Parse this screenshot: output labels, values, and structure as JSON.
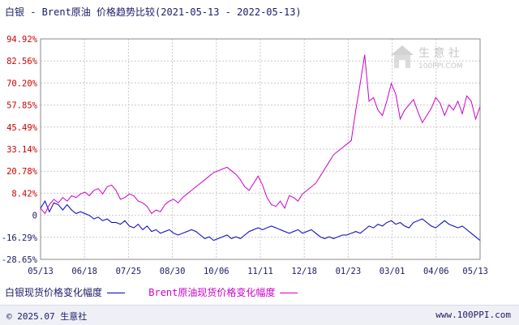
{
  "header": {
    "title": "白银 - Brent原油 价格趋势比较(2021-05-13 - 2022-05-13)"
  },
  "footer": {
    "copyright": "© 2025.07 生意社",
    "site": "www.100PPI.com"
  },
  "watermark": {
    "brand": "生 意 社",
    "url": "100PPI.COM"
  },
  "colors": {
    "silver_series": "#0000bb",
    "brent_series": "#cc00cc",
    "y_positive_label": "#cc0000",
    "y_negative_label": "#1a1a66",
    "grid": "#c8c8c8"
  },
  "chart_data": {
    "type": "line",
    "title": "白银 - Brent原油 价格趋势比较(2021-05-13 - 2022-05-13)",
    "xlabel": "",
    "ylabel": "",
    "x_tick_labels": [
      "05/13",
      "06/18",
      "07/25",
      "08/30",
      "10/06",
      "11/11",
      "12/18",
      "01/23",
      "03/01",
      "04/06",
      "05/13"
    ],
    "y_tick_labels": [
      "94.92%",
      "82.56%",
      "70.20%",
      "57.85%",
      "45.49%",
      "33.14%",
      "20.78%",
      "8.42%",
      "0",
      "-16.29%",
      "-28.65%"
    ],
    "ylim": [
      -28.65,
      94.92
    ],
    "grid": true,
    "legend_position": "bottom",
    "series": [
      {
        "name": "白银现货价格变化幅度",
        "color": "#0000bb",
        "values": [
          0,
          4,
          -2,
          3,
          2,
          -1,
          2,
          -1,
          -3,
          -2,
          -3,
          -4,
          -6,
          -5,
          -7,
          -6,
          -8,
          -8,
          -9,
          -7,
          -10,
          -11,
          -9,
          -12,
          -10,
          -13,
          -12,
          -14,
          -13,
          -12,
          -14,
          -15,
          -14,
          -13,
          -12,
          -13,
          -15,
          -17,
          -16,
          -18,
          -17,
          -16,
          -15,
          -17,
          -16,
          -17,
          -15,
          -13,
          -12,
          -11,
          -12,
          -11,
          -10,
          -11,
          -12,
          -13,
          -14,
          -13,
          -12,
          -14,
          -13,
          -12,
          -14,
          -16,
          -17,
          -16,
          -17,
          -16,
          -15,
          -15,
          -14,
          -13,
          -14,
          -12,
          -10,
          -11,
          -9,
          -10,
          -8,
          -7,
          -9,
          -8,
          -10,
          -11,
          -8,
          -7,
          -6,
          -8,
          -10,
          -11,
          -9,
          -7,
          -9,
          -10,
          -11,
          -10,
          -12,
          -14,
          -16,
          -18
        ]
      },
      {
        "name": "Brent原油现货价格变化幅度",
        "color": "#cc00cc",
        "values": [
          0,
          -3,
          2,
          5,
          3,
          6,
          4,
          7,
          6,
          8,
          9,
          7,
          10,
          11,
          8,
          12,
          13,
          10,
          5,
          6,
          8,
          7,
          4,
          3,
          1,
          -3,
          -1,
          -2,
          2,
          4,
          5,
          3,
          6,
          8,
          10,
          12,
          14,
          16,
          18,
          20,
          21,
          22,
          23,
          21,
          19,
          16,
          12,
          10,
          14,
          18,
          13,
          6,
          2,
          1,
          4,
          0,
          7,
          6,
          4,
          8,
          10,
          12,
          14,
          18,
          22,
          26,
          30,
          32,
          34,
          36,
          38,
          55,
          70,
          86,
          60,
          62,
          55,
          52,
          60,
          70,
          64,
          50,
          55,
          58,
          61,
          54,
          48,
          52,
          56,
          62,
          59,
          52,
          58,
          55,
          60,
          53,
          63,
          60,
          50,
          57
        ]
      }
    ]
  }
}
